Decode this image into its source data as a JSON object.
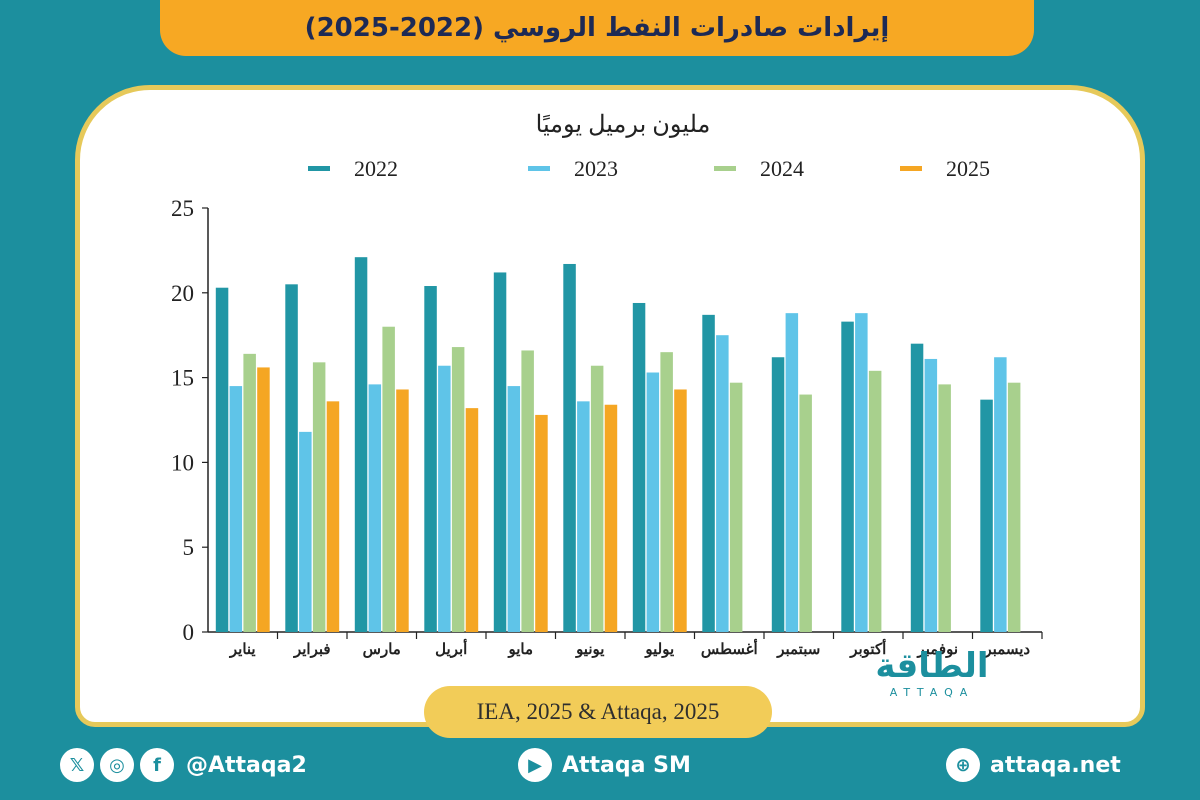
{
  "header": {
    "title": "إيرادات صادرات النفط الروسي (2022-2025)"
  },
  "source": "IEA, 2025 & Attaqa, 2025",
  "logo": {
    "arabic": "الطاقة",
    "latin": "ATTAQA"
  },
  "footer": {
    "social_handle": "@Attaqa2",
    "youtube_label": "Attaqa SM",
    "website": "attaqa.net",
    "icons": [
      "x-icon",
      "instagram-icon",
      "facebook-icon",
      "youtube-icon",
      "globe-icon"
    ]
  },
  "colors": {
    "2022": "#2196a5",
    "2023": "#5fc4e8",
    "2024": "#a8d08d",
    "2025": "#f5a623",
    "accent": "#f7a823",
    "background": "#1c8f9e"
  },
  "chart_data": {
    "type": "bar",
    "title": "مليون برميل يوميًا",
    "categories": [
      "يناير",
      "فبراير",
      "مارس",
      "أبريل",
      "مايو",
      "يونيو",
      "يوليو",
      "أغسطس",
      "سبتمبر",
      "أكتوبر",
      "نوفمبر",
      "ديسمبر"
    ],
    "series": [
      {
        "name": "2022",
        "values": [
          20.3,
          20.5,
          22.1,
          20.4,
          21.2,
          21.7,
          19.4,
          18.7,
          16.2,
          18.3,
          17.0,
          13.7
        ]
      },
      {
        "name": "2023",
        "values": [
          14.5,
          11.8,
          14.6,
          15.7,
          14.5,
          13.6,
          15.3,
          17.5,
          18.8,
          18.8,
          16.1,
          16.2
        ]
      },
      {
        "name": "2024",
        "values": [
          16.4,
          15.9,
          18.0,
          16.8,
          16.6,
          15.7,
          16.5,
          14.7,
          14.0,
          15.4,
          14.6,
          14.7
        ]
      },
      {
        "name": "2025",
        "values": [
          15.6,
          13.6,
          14.3,
          13.2,
          12.8,
          13.4,
          14.3,
          null,
          null,
          null,
          null,
          null
        ]
      }
    ],
    "yticks": [
      0,
      5,
      10,
      15,
      20,
      25
    ],
    "ylim": [
      0,
      25
    ],
    "legend_position": "top",
    "grid": false
  }
}
